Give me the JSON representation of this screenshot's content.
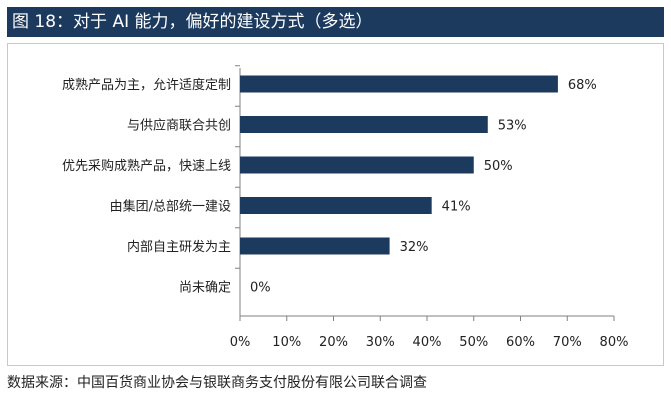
{
  "title": "图 18：对于 AI 能力，偏好的建设方式（多选）",
  "source": "数据来源：中国百货商业协会与银联商务支付股份有限公司联合调查",
  "colors": {
    "title_bg": "#1c3a5e",
    "bar": "#1c3a5e"
  },
  "chart_data": {
    "type": "bar",
    "orientation": "horizontal",
    "categories": [
      "成熟产品为主，允许适度定制",
      "与供应商联合共创",
      "优先采购成熟产品，快速上线",
      "由集团/总部统一建设",
      "内部自主研发为主",
      "尚未确定"
    ],
    "values": [
      68,
      53,
      50,
      41,
      32,
      0
    ],
    "value_labels": [
      "68%",
      "53%",
      "50%",
      "41%",
      "32%",
      "0%"
    ],
    "xlim": [
      0,
      80
    ],
    "x_ticks": [
      "0%",
      "10%",
      "20%",
      "30%",
      "40%",
      "50%",
      "60%",
      "70%",
      "80%"
    ],
    "grid": false,
    "legend": "none"
  }
}
